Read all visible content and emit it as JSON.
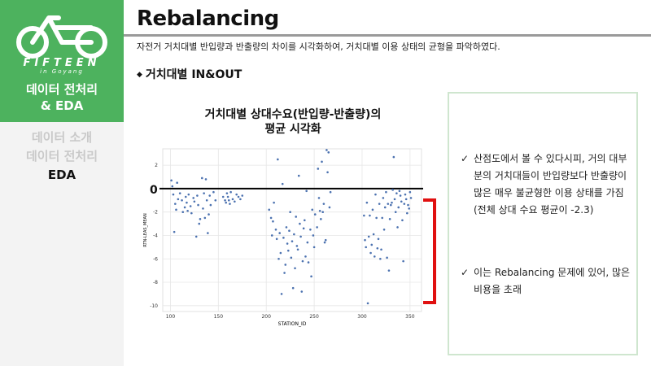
{
  "sidebar": {
    "logo": {
      "name": "FIFTEEN",
      "sub": "in Goyang"
    },
    "section_title": "데이터 전처리\n& EDA",
    "items": [
      {
        "label": "데이터 소개",
        "active": false
      },
      {
        "label": "데이터 전처리",
        "active": false
      },
      {
        "label": "EDA",
        "active": true
      }
    ]
  },
  "header": {
    "title": "Rebalancing",
    "subtitle": "자전거 거치대별 반입량과 반출량의 차이를 시각화하여, 거치대별 이용 상태의 균형을 파악하였다.",
    "section": "거치대별 IN&OUT"
  },
  "annotation": {
    "zero_label": "0"
  },
  "notes": [
    "산점도에서 볼 수 있다시피, 거의 대부분의 거치대들이 반입량보다 반출량이 많은 매우 불균형한 이용 상태를 가짐 (전체 상대 수요 평균이 -2.3)",
    "이는 Rebalancing 문제에 있어, 많은 비용을 초래"
  ],
  "colors": {
    "accent": "#4db25e",
    "points": "#4c72b0",
    "bracket": "#e01010",
    "sidebar_bg": "#f3f3f3"
  },
  "chart_data": {
    "type": "scatter",
    "title": "거치대별 상대수요(반입량-반출량)의\n평균 시각화",
    "xlabel": "STATION_ID",
    "ylabel": "RTN-LEAS_MEAN",
    "xlim": [
      92,
      362
    ],
    "ylim": [
      -10.5,
      3.4
    ],
    "xticks": [
      100,
      150,
      200,
      250,
      300,
      350
    ],
    "yticks": [
      2,
      0,
      -2,
      -4,
      -6,
      -8,
      -10
    ],
    "grid": true,
    "reference_line": 0,
    "points": [
      [
        101,
        0.7
      ],
      [
        102,
        0.2
      ],
      [
        103,
        -0.5
      ],
      [
        104,
        -3.7
      ],
      [
        105,
        -1.3
      ],
      [
        106,
        -1.8
      ],
      [
        107,
        0.5
      ],
      [
        108,
        -0.9
      ],
      [
        110,
        -0.4
      ],
      [
        112,
        -1.0
      ],
      [
        113,
        -2.0
      ],
      [
        115,
        -1.6
      ],
      [
        116,
        -0.7
      ],
      [
        117,
        -1.2
      ],
      [
        118,
        -1.9
      ],
      [
        119,
        -0.5
      ],
      [
        121,
        -1.5
      ],
      [
        122,
        -2.1
      ],
      [
        124,
        -0.8
      ],
      [
        125,
        -1.1
      ],
      [
        127,
        -4.1
      ],
      [
        128,
        -0.6
      ],
      [
        129,
        -1.4
      ],
      [
        130,
        -3.0
      ],
      [
        131,
        -2.6
      ],
      [
        133,
        0.9
      ],
      [
        134,
        -1.7
      ],
      [
        135,
        -0.4
      ],
      [
        136,
        -2.5
      ],
      [
        137,
        0.8
      ],
      [
        138,
        -1.0
      ],
      [
        139,
        -3.8
      ],
      [
        140,
        -2.2
      ],
      [
        141,
        -0.6
      ],
      [
        142,
        -1.4
      ],
      [
        145,
        -0.3
      ],
      [
        147,
        -1.0
      ],
      [
        155,
        -0.7
      ],
      [
        157,
        -1.0
      ],
      [
        158,
        -1.2
      ],
      [
        159,
        -0.4
      ],
      [
        160,
        -0.7
      ],
      [
        161,
        -1.0
      ],
      [
        162,
        -1.3
      ],
      [
        163,
        -0.3
      ],
      [
        165,
        -0.9
      ],
      [
        167,
        -1.1
      ],
      [
        169,
        -0.5
      ],
      [
        171,
        -0.7
      ],
      [
        173,
        -0.9
      ],
      [
        175,
        -0.6
      ],
      [
        203,
        -1.8
      ],
      [
        205,
        -2.5
      ],
      [
        206,
        -4.0
      ],
      [
        207,
        -2.8
      ],
      [
        208,
        -1.2
      ],
      [
        210,
        -3.5
      ],
      [
        211,
        -4.3
      ],
      [
        212,
        2.5
      ],
      [
        213,
        -6.0
      ],
      [
        214,
        -3.8
      ],
      [
        215,
        -5.5
      ],
      [
        216,
        -9.0
      ],
      [
        217,
        0.4
      ],
      [
        218,
        -4.2
      ],
      [
        219,
        -7.2
      ],
      [
        220,
        -6.5
      ],
      [
        221,
        -3.3
      ],
      [
        222,
        -4.7
      ],
      [
        223,
        -5.3
      ],
      [
        224,
        -3.6
      ],
      [
        225,
        -2.0
      ],
      [
        226,
        -5.9
      ],
      [
        227,
        -4.5
      ],
      [
        228,
        -8.5
      ],
      [
        229,
        -3.9
      ],
      [
        230,
        -6.8
      ],
      [
        231,
        -2.4
      ],
      [
        232,
        -4.9
      ],
      [
        233,
        -5.2
      ],
      [
        234,
        1.1
      ],
      [
        235,
        -3.0
      ],
      [
        236,
        -4.1
      ],
      [
        237,
        -8.8
      ],
      [
        238,
        -6.2
      ],
      [
        239,
        -3.4
      ],
      [
        240,
        -2.7
      ],
      [
        241,
        -5.8
      ],
      [
        242,
        -0.2
      ],
      [
        243,
        -4.6
      ],
      [
        244,
        -6.3
      ],
      [
        246,
        -3.5
      ],
      [
        247,
        -7.5
      ],
      [
        248,
        -1.8
      ],
      [
        249,
        -4.0
      ],
      [
        250,
        -5.0
      ],
      [
        251,
        -2.2
      ],
      [
        253,
        -3.3
      ],
      [
        254,
        1.7
      ],
      [
        255,
        -0.8
      ],
      [
        256,
        -1.9
      ],
      [
        257,
        -2.6
      ],
      [
        258,
        2.3
      ],
      [
        259,
        -2.0
      ],
      [
        260,
        -1.3
      ],
      [
        261,
        -4.6
      ],
      [
        262,
        -4.4
      ],
      [
        263,
        3.3
      ],
      [
        264,
        1.4
      ],
      [
        265,
        3.1
      ],
      [
        266,
        -1.6
      ],
      [
        267,
        -0.3
      ],
      [
        302,
        -2.3
      ],
      [
        303,
        -4.4
      ],
      [
        304,
        -5.0
      ],
      [
        305,
        -1.2
      ],
      [
        306,
        -9.8
      ],
      [
        307,
        -4.1
      ],
      [
        308,
        -2.3
      ],
      [
        309,
        -5.5
      ],
      [
        310,
        -4.8
      ],
      [
        311,
        -1.8
      ],
      [
        312,
        -3.9
      ],
      [
        313,
        -5.8
      ],
      [
        314,
        -0.5
      ],
      [
        315,
        -2.5
      ],
      [
        316,
        -5.1
      ],
      [
        317,
        -4.3
      ],
      [
        318,
        -1.3
      ],
      [
        319,
        -6.0
      ],
      [
        320,
        -5.2
      ],
      [
        321,
        -2.5
      ],
      [
        322,
        -0.8
      ],
      [
        323,
        -3.5
      ],
      [
        324,
        -1.6
      ],
      [
        325,
        -0.3
      ],
      [
        326,
        -5.9
      ],
      [
        327,
        -1.3
      ],
      [
        328,
        -7.0
      ],
      [
        329,
        -2.6
      ],
      [
        330,
        -1.4
      ],
      [
        331,
        -1.2
      ],
      [
        332,
        -0.1
      ],
      [
        333,
        2.7
      ],
      [
        334,
        -0.9
      ],
      [
        335,
        -2.0
      ],
      [
        336,
        -0.4
      ],
      [
        337,
        -3.3
      ],
      [
        338,
        -1.6
      ],
      [
        339,
        -0.2
      ],
      [
        340,
        -0.6
      ],
      [
        341,
        -1.1
      ],
      [
        342,
        -2.7
      ],
      [
        343,
        -6.2
      ],
      [
        344,
        -1.3
      ],
      [
        345,
        -0.5
      ],
      [
        346,
        -0.9
      ],
      [
        347,
        -2.1
      ],
      [
        348,
        -1.4
      ],
      [
        349,
        -1.7
      ],
      [
        350,
        -0.3
      ],
      [
        351,
        -0.8
      ]
    ]
  }
}
